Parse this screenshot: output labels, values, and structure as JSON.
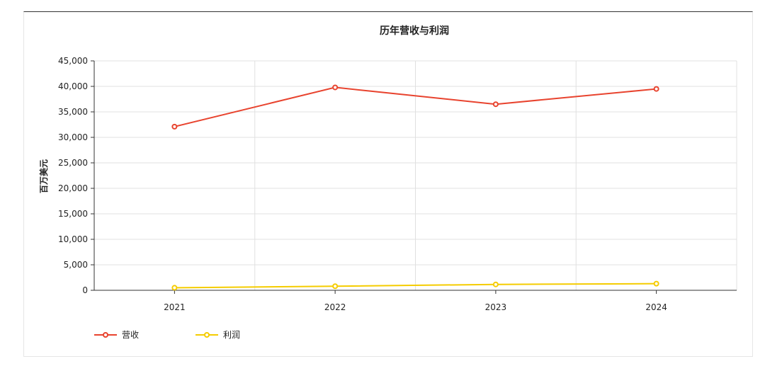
{
  "chart_data": {
    "type": "line",
    "title": "历年营收与利润",
    "xlabel": "",
    "ylabel": "百万美元",
    "categories": [
      "2021",
      "2022",
      "2023",
      "2024"
    ],
    "ylim": [
      0,
      45000
    ],
    "yticks": [
      0,
      5000,
      10000,
      15000,
      20000,
      25000,
      30000,
      35000,
      40000,
      45000
    ],
    "ytick_labels": [
      "0",
      "5,000",
      "10,000",
      "15,000",
      "20,000",
      "25,000",
      "30,000",
      "35,000",
      "40,000",
      "45,000"
    ],
    "grid": true,
    "legend_position": "bottom-left",
    "series": [
      {
        "name": "营收",
        "color": "#e8432e",
        "values": [
          32100,
          39800,
          36500,
          39500
        ]
      },
      {
        "name": "利润",
        "color": "#f5cc00",
        "values": [
          500,
          800,
          1150,
          1300
        ]
      }
    ]
  }
}
